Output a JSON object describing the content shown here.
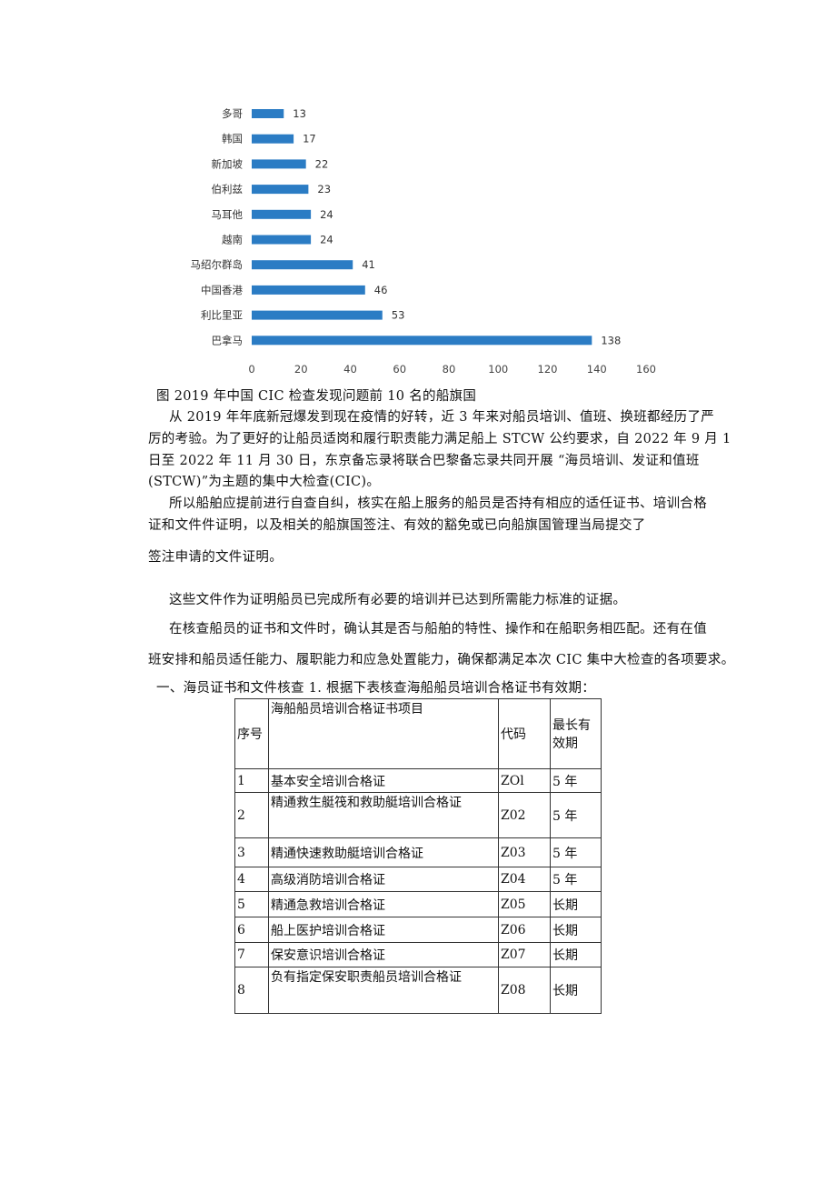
{
  "chart_data": {
    "type": "bar",
    "orientation": "horizontal",
    "categories": [
      "多哥",
      "韩国",
      "新加坡",
      "伯利兹",
      "马耳他",
      "越南",
      "马绍尔群岛",
      "中国香港",
      "利比里亚",
      "巴拿马"
    ],
    "values": [
      13,
      17,
      22,
      23,
      24,
      24,
      41,
      46,
      53,
      138
    ],
    "xlim": [
      0,
      160
    ],
    "xticks": [
      0,
      20,
      40,
      60,
      80,
      100,
      120,
      140,
      160
    ],
    "bar_color": "#2b7cc4",
    "grid": false,
    "data_labels": true
  },
  "caption": "图 2019 年中国 CIC 检查发现问题前 10 名的船旗国",
  "paragraphs": [
    {
      "lines": [
        "从 2019 年年底新冠爆发到现在疫情的好转，近 3 年来对船员培训、值班、换班都经历了严",
        "厉的考验。为了更好的让船员适岗和履行职责能力满足船上 STCW 公约要求，自 2022 年 9 月 1",
        "日至 2022 年 11 月 30 日，东京备忘录将联合巴黎备忘录共同开展 “海员培训、发证和值班",
        "(STCW)”为主题的集中大检查(CIC)。"
      ]
    },
    {
      "lines": [
        "所以船舶应提前进行自查自纠，核实在船上服务的船员是否持有相应的适任证书、培训合格",
        "证和文件件证明，以及相关的船旗国签注、有效的豁免或已向船旗国管理当局提交了"
      ]
    },
    {
      "lines": [
        "签注申请的文件证明。"
      ]
    },
    {
      "lines": [
        "这些文件作为证明船员已完成所有必要的培训并已达到所需能力标准的证据。"
      ]
    },
    {
      "lines": [
        "在核查船员的证书和文件时，确认其是否与船舶的特性、操作和在船职务相匹配。还有在值"
      ]
    },
    {
      "lines": [
        "班安排和船员适任能力、履职能力和应急处置能力，确保都满足本次 CIC 集中大检查的各项要求。"
      ]
    },
    {
      "lines": [
        "一、海员证书和文件核查 1. 根据下表核查海船船员培训合格证书有效期："
      ]
    }
  ],
  "table": {
    "headers": [
      "序号",
      "海船船员培训合格证书项目",
      "代码",
      "最长有效期"
    ],
    "rows": [
      [
        "1",
        "基本安全培训合格证",
        "ZOl",
        "5 年"
      ],
      [
        "2",
        "精通救生艇筏和救助艇培训合格证",
        "Z02",
        "5 年"
      ],
      [
        "3",
        "精通快速救助艇培训合格证",
        "Z03",
        "5 年"
      ],
      [
        "4",
        "高级消防培训合格证",
        "Z04",
        "5 年"
      ],
      [
        "5",
        "精通急救培训合格证",
        "Z05",
        "长期"
      ],
      [
        "6",
        "船上医护培训合格证",
        "Z06",
        "长期"
      ],
      [
        "7",
        "保安意识培训合格证",
        "Z07",
        "长期"
      ],
      [
        "8",
        "负有指定保安职责船员培训合格证",
        "Z08",
        "长期"
      ]
    ]
  }
}
